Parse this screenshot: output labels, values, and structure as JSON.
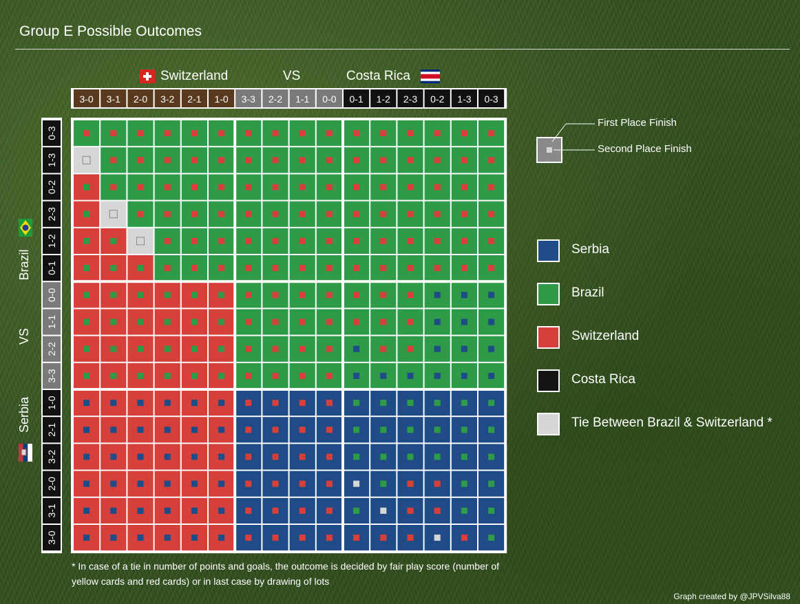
{
  "title": "Group E Possible Outcomes",
  "header": {
    "team_left": "Switzerland",
    "vs": "VS",
    "team_right": "Costa Rica"
  },
  "side": {
    "team_top": "Brazil",
    "vs": "VS",
    "team_bottom": "Serbia"
  },
  "footnote": "* In case of a tie in number of points and goals, the outcome is decided by fair play score (number of yellow cards and red cards) or in last case by drawing of lots",
  "credit": "Graph created by @JPVSilva88",
  "colors": {
    "S": "#1f4c86",
    "B": "#2e9b48",
    "W": "#d7403a",
    "C": "#141414",
    "T": "#d6d6d6",
    "brown": "#5a3a1e",
    "grey": "#7a7a7a",
    "black": "#111111"
  },
  "legend": {
    "marker_first": "First Place Finish",
    "marker_second": "Second Place Finish",
    "items": [
      {
        "key": "S",
        "label": "Serbia"
      },
      {
        "key": "B",
        "label": "Brazil"
      },
      {
        "key": "W",
        "label": "Switzerland"
      },
      {
        "key": "C",
        "label": "Costa Rica"
      },
      {
        "key": "T",
        "label": "Tie Between Brazil & Switzerland *"
      }
    ]
  },
  "chart_data": {
    "type": "heatmap",
    "columns": [
      "3-0",
      "3-1",
      "2-0",
      "3-2",
      "2-1",
      "1-0",
      "3-3",
      "2-2",
      "1-1",
      "0-0",
      "0-1",
      "1-2",
      "2-3",
      "0-2",
      "1-3",
      "0-3"
    ],
    "column_groups": [
      "brown",
      "brown",
      "brown",
      "brown",
      "brown",
      "brown",
      "grey",
      "grey",
      "grey",
      "grey",
      "black",
      "black",
      "black",
      "black",
      "black",
      "black"
    ],
    "rows": [
      "0-3",
      "1-3",
      "0-2",
      "2-3",
      "1-2",
      "0-1",
      "0-0",
      "1-1",
      "2-2",
      "3-3",
      "1-0",
      "2-1",
      "3-2",
      "2-0",
      "3-1",
      "3-0"
    ],
    "row_groups": [
      "black",
      "black",
      "black",
      "black",
      "black",
      "black",
      "grey",
      "grey",
      "grey",
      "grey",
      "black",
      "black",
      "black",
      "black",
      "black",
      "black"
    ],
    "first_place": [
      "BBBBBBBBBBBBBBBB",
      "TBBBBBBBBBBBBBBB",
      "WBBBBBBBBBBBBBBB",
      "WTBBBBBBBBBBBBBB",
      "WWTBBBBBBBBBBBBB",
      "WWWBBBBBBBBBBBBB",
      "WWWWWWBBBBBBBBBB",
      "WWWWWWBBBBBBBBBB",
      "WWWWWWBBBBBBBBBB",
      "WWWWWWBBBBBBBBBB",
      "WWWWWWSSSSSSSSSS",
      "WWWWWWSSSSSSSSSS",
      "WWWWWWSSSSSSSSSS",
      "WWWWWWSSSSSSSSSS",
      "WWWWWWSSSSSSSSSS",
      "WWWWWWSSSSSSSSSS"
    ],
    "second_place": [
      "WWWWWWWWWWWWWWWW",
      "TWWWWWWWWWWWWWWW",
      "BWWWWWWWWWWWWWWW",
      "BTWWWWWWWWWWWWWW",
      "BBTWWWWWWWWWWWWW",
      "BBBWWWWWWWWWWWWW",
      "BBBBBBWWWWWWWSSS",
      "BBBBBBWWWWWWWSSS",
      "BBBBBBWWWWSWWSSS",
      "BBBBBBWWWWSSSSSS",
      "SSSSSSWWWWBBBBBB",
      "SSSSSSWWWWBBBBBB",
      "SSSSSSWWWWBBBBBB",
      "SSSSSSWWWWTBWWBB",
      "SSSSSSWWWWBTWWBB",
      "SSSSSSWWWWWWWTWB"
    ]
  }
}
